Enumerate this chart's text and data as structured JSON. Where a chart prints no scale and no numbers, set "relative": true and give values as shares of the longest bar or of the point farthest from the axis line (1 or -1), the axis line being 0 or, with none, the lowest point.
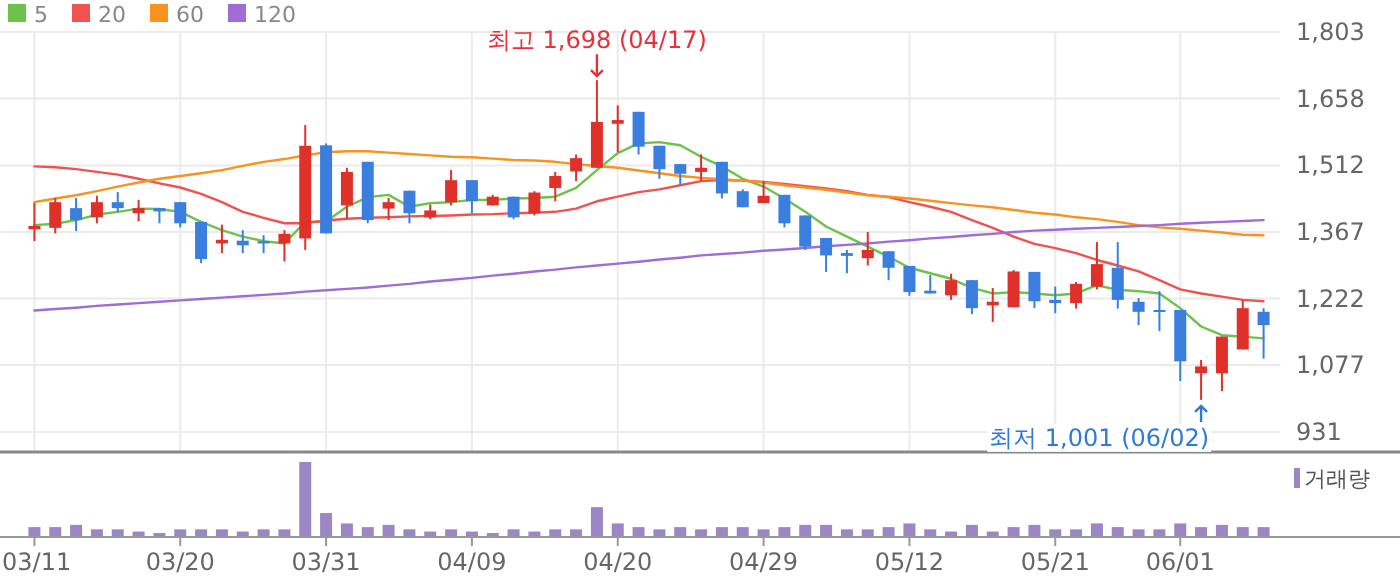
{
  "chart_data": [
    {
      "type": "candlestick",
      "categories": [
        null,
        null,
        null,
        null,
        null,
        null,
        null,
        null,
        null,
        null,
        null,
        null,
        null,
        null,
        null,
        null,
        null,
        null,
        null,
        null,
        null,
        null,
        null,
        null,
        null,
        null,
        null,
        null,
        null,
        null,
        null,
        null,
        null,
        null,
        null,
        null,
        null,
        null,
        null,
        null,
        null,
        null,
        null,
        null,
        null,
        null,
        null,
        null,
        null,
        null,
        null,
        null,
        null,
        null,
        null,
        null,
        null,
        null,
        null,
        null
      ],
      "ohlc": [
        [
          1373,
          1430,
          1347,
          1380
        ],
        [
          1376,
          1441,
          1364,
          1432
        ],
        [
          1419,
          1441,
          1369,
          1393
        ],
        [
          1399,
          1446,
          1386,
          1432
        ],
        [
          1432,
          1454,
          1411,
          1419
        ],
        [
          1408,
          1437,
          1390,
          1419
        ],
        [
          1419,
          1419,
          1386,
          1412
        ],
        [
          1432,
          1432,
          1377,
          1386
        ],
        [
          1389,
          1389,
          1299,
          1308
        ],
        [
          1342,
          1383,
          1321,
          1350
        ],
        [
          1348,
          1371,
          1321,
          1338
        ],
        [
          1347,
          1360,
          1321,
          1342
        ],
        [
          1342,
          1371,
          1303,
          1363
        ],
        [
          1353,
          1600,
          1328,
          1555
        ],
        [
          1556,
          1560,
          1364,
          1364
        ],
        [
          1425,
          1507,
          1396,
          1498
        ],
        [
          1520,
          1520,
          1386,
          1393
        ],
        [
          1418,
          1441,
          1393,
          1432
        ],
        [
          1457,
          1457,
          1386,
          1408
        ],
        [
          1399,
          1427,
          1395,
          1414
        ],
        [
          1432,
          1502,
          1425,
          1480
        ],
        [
          1480,
          1480,
          1408,
          1434
        ],
        [
          1425,
          1448,
          1425,
          1444
        ],
        [
          1444,
          1444,
          1395,
          1399
        ],
        [
          1408,
          1456,
          1403,
          1453
        ],
        [
          1463,
          1498,
          1434,
          1489
        ],
        [
          1499,
          1536,
          1478,
          1528
        ],
        [
          1507,
          1698,
          1507,
          1607
        ],
        [
          1603,
          1643,
          1541,
          1611
        ],
        [
          1629,
          1629,
          1536,
          1553
        ],
        [
          1555,
          1555,
          1483,
          1504
        ],
        [
          1515,
          1515,
          1469,
          1494
        ],
        [
          1498,
          1536,
          1478,
          1507
        ],
        [
          1520,
          1520,
          1440,
          1451
        ],
        [
          1456,
          1460,
          1421,
          1421
        ],
        [
          1430,
          1478,
          1430,
          1446
        ],
        [
          1448,
          1448,
          1377,
          1386
        ],
        [
          1403,
          1403,
          1328,
          1335
        ],
        [
          1354,
          1354,
          1280,
          1316
        ],
        [
          1321,
          1328,
          1277,
          1315
        ],
        [
          1310,
          1367,
          1294,
          1328
        ],
        [
          1325,
          1325,
          1262,
          1289
        ],
        [
          1293,
          1293,
          1228,
          1236
        ],
        [
          1239,
          1273,
          1233,
          1233
        ],
        [
          1229,
          1276,
          1219,
          1262
        ],
        [
          1262,
          1262,
          1188,
          1201
        ],
        [
          1207,
          1245,
          1171,
          1215
        ],
        [
          1203,
          1284,
          1203,
          1281
        ],
        [
          1280,
          1280,
          1201,
          1216
        ],
        [
          1219,
          1248,
          1190,
          1212
        ],
        [
          1212,
          1258,
          1200,
          1254
        ],
        [
          1248,
          1345,
          1242,
          1297
        ],
        [
          1289,
          1345,
          1200,
          1219
        ],
        [
          1215,
          1223,
          1164,
          1193
        ],
        [
          1197,
          1238,
          1151,
          1194
        ],
        [
          1197,
          1197,
          1042,
          1085
        ],
        [
          1059,
          1088,
          1001,
          1074
        ],
        [
          1059,
          1139,
          1020,
          1139
        ],
        [
          1111,
          1219,
          1111,
          1201
        ],
        [
          1193,
          1201,
          1091,
          1164
        ]
      ],
      "colors": [
        "#e0302a",
        "#e0302a",
        "#3a7ee0",
        "#e0302a",
        "#3a7ee0",
        "#e0302a",
        "#3a7ee0",
        "#3a7ee0",
        "#3a7ee0",
        "#e0302a",
        "#3a7ee0",
        "#3a7ee0",
        "#e0302a",
        "#e0302a",
        "#3a7ee0",
        "#e0302a",
        "#3a7ee0",
        "#e0302a",
        "#3a7ee0",
        "#e0302a",
        "#e0302a",
        "#3a7ee0",
        "#e0302a",
        "#3a7ee0",
        "#e0302a",
        "#e0302a",
        "#e0302a",
        "#e0302a",
        "#e0302a",
        "#3a7ee0",
        "#3a7ee0",
        "#3a7ee0",
        "#e0302a",
        "#3a7ee0",
        "#3a7ee0",
        "#e0302a",
        "#3a7ee0",
        "#3a7ee0",
        "#3a7ee0",
        "#3a7ee0",
        "#e0302a",
        "#3a7ee0",
        "#3a7ee0",
        "#3a7ee0",
        "#e0302a",
        "#3a7ee0",
        "#e0302a",
        "#e0302a",
        "#3a7ee0",
        "#3a7ee0",
        "#e0302a",
        "#e0302a",
        "#3a7ee0",
        "#3a7ee0",
        "#3a7ee0",
        "#3a7ee0",
        "#e0302a",
        "#e0302a",
        "#e0302a",
        "#3a7ee0"
      ],
      "series": [
        {
          "type": "line",
          "name": "5",
          "color": "#6cc24a",
          "values": [
            1382,
            1385,
            1393,
            1405,
            1411,
            1418,
            1417,
            1411,
            1389,
            1371,
            1357,
            1347,
            1342,
            1389,
            1390,
            1422,
            1443,
            1448,
            1422,
            1430,
            1432,
            1437,
            1437,
            1440,
            1441,
            1444,
            1463,
            1502,
            1539,
            1560,
            1563,
            1556,
            1531,
            1510,
            1483,
            1466,
            1440,
            1411,
            1379,
            1357,
            1335,
            1313,
            1289,
            1277,
            1265,
            1245,
            1233,
            1236,
            1233,
            1229,
            1233,
            1251,
            1241,
            1238,
            1233,
            1201,
            1161,
            1142,
            1139,
            1135
          ]
        },
        {
          "type": "line",
          "name": "20",
          "color": "#f05252",
          "values": [
            1510,
            1508,
            1504,
            1498,
            1492,
            1483,
            1473,
            1464,
            1450,
            1432,
            1411,
            1398,
            1386,
            1386,
            1392,
            1396,
            1398,
            1399,
            1401,
            1402,
            1403,
            1405,
            1406,
            1408,
            1409,
            1411,
            1418,
            1434,
            1444,
            1454,
            1460,
            1469,
            1478,
            1480,
            1479,
            1476,
            1472,
            1467,
            1462,
            1456,
            1448,
            1443,
            1432,
            1422,
            1411,
            1393,
            1376,
            1357,
            1341,
            1332,
            1321,
            1306,
            1294,
            1281,
            1262,
            1242,
            1233,
            1226,
            1219,
            1216
          ]
        },
        {
          "type": "line",
          "name": "60",
          "color": "#f7931e",
          "values": [
            1432,
            1440,
            1447,
            1456,
            1466,
            1475,
            1483,
            1489,
            1495,
            1502,
            1511,
            1520,
            1526,
            1534,
            1541,
            1543,
            1543,
            1540,
            1537,
            1534,
            1531,
            1530,
            1527,
            1524,
            1523,
            1520,
            1515,
            1511,
            1507,
            1501,
            1495,
            1489,
            1485,
            1482,
            1479,
            1475,
            1469,
            1464,
            1459,
            1453,
            1447,
            1444,
            1440,
            1435,
            1430,
            1425,
            1421,
            1415,
            1409,
            1405,
            1399,
            1395,
            1389,
            1382,
            1377,
            1374,
            1370,
            1366,
            1361,
            1360
          ]
        },
        {
          "type": "line",
          "name": "120",
          "color": "#a06cd5",
          "values": [
            1196,
            1199,
            1202,
            1206,
            1209,
            1212,
            1215,
            1218,
            1221,
            1224,
            1227,
            1230,
            1233,
            1237,
            1240,
            1243,
            1246,
            1250,
            1254,
            1259,
            1263,
            1267,
            1272,
            1276,
            1281,
            1285,
            1290,
            1294,
            1298,
            1302,
            1307,
            1311,
            1316,
            1319,
            1322,
            1326,
            1329,
            1332,
            1336,
            1339,
            1342,
            1346,
            1349,
            1353,
            1356,
            1360,
            1363,
            1367,
            1370,
            1372,
            1374,
            1376,
            1378,
            1380,
            1382,
            1385,
            1387,
            1389,
            1391,
            1393
          ]
        }
      ],
      "ylim": [
        931,
        1803
      ],
      "yticks": [
        {
          "value": 931,
          "label": "931"
        },
        {
          "value": 1077,
          "label": "1,077"
        },
        {
          "value": 1222,
          "label": "1,222"
        },
        {
          "value": 1367,
          "label": "1,367"
        },
        {
          "value": 1512,
          "label": "1,512"
        },
        {
          "value": 1658,
          "label": "1,658"
        },
        {
          "value": 1803,
          "label": "1,803"
        }
      ],
      "grid": true,
      "legend": "top left",
      "tick_labels": "y",
      "annotations": [
        {
          "text": "최고 1,698 (04/17)",
          "y": 1698
        },
        "최저 1,001 (06/02)"
      ]
    },
    {
      "type": "bar",
      "relative": true,
      "categories": [
        "03/11",
        null,
        null,
        null,
        null,
        null,
        null,
        "03/20",
        null,
        null,
        null,
        null,
        null,
        null,
        "03/31",
        null,
        null,
        null,
        null,
        null,
        null,
        "04/09",
        null,
        null,
        null,
        null,
        null,
        null,
        "04/20",
        null,
        null,
        null,
        null,
        null,
        null,
        "04/29",
        null,
        null,
        null,
        null,
        null,
        null,
        "05/12",
        null,
        null,
        null,
        null,
        null,
        null,
        "05/21",
        null,
        null,
        null,
        null,
        null,
        "06/01",
        null,
        null,
        null,
        null
      ],
      "series": [
        {
          "name": "거래량",
          "color": "#9b86c6",
          "values": [
            0.12,
            0.12,
            0.15,
            0.09,
            0.09,
            0.06,
            0.04,
            0.09,
            0.09,
            0.09,
            0.06,
            0.09,
            0.09,
            1,
            0.31,
            0.17,
            0.12,
            0.15,
            0.09,
            0.06,
            0.09,
            0.06,
            0.04,
            0.09,
            0.06,
            0.09,
            0.09,
            0.39,
            0.17,
            0.12,
            0.09,
            0.12,
            0.09,
            0.12,
            0.12,
            0.09,
            0.12,
            0.15,
            0.15,
            0.09,
            0.09,
            0.12,
            0.17,
            0.09,
            0.06,
            0.15,
            0.06,
            0.12,
            0.15,
            0.09,
            0.09,
            0.17,
            0.12,
            0.09,
            0.09,
            0.17,
            0.12,
            0.15,
            0.12,
            0.12
          ]
        }
      ],
      "legend": "top right",
      "tick_labels": "x"
    }
  ]
}
